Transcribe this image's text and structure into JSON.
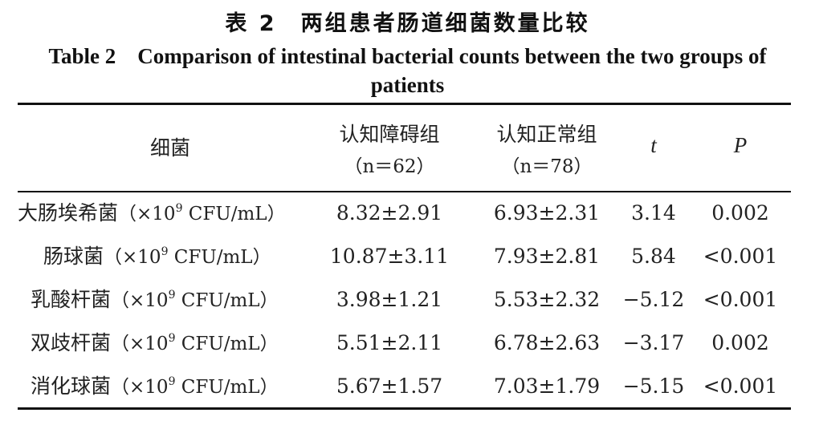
{
  "title": {
    "cn": "表 2　两组患者肠道细菌数量比较",
    "en": "Table 2　Comparison of intestinal bacterial counts between the two groups of patients"
  },
  "table": {
    "headers": {
      "bacteria": "细菌",
      "group1_name": "认知障碍组",
      "group1_n": "（n＝62）",
      "group2_name": "认知正常组",
      "group2_n": "（n＝78）",
      "t": "t",
      "p": "P"
    },
    "unit_prefix": "（×10",
    "unit_exp": "9",
    "unit_suffix": " CFU/mL）",
    "rows": [
      {
        "name": "大肠埃希菌",
        "g1": "8.32±2.91",
        "g2": "6.93±2.31",
        "t": "3.14",
        "p": "0.002"
      },
      {
        "name": "肠球菌",
        "g1": "10.87±3.11",
        "g2": "7.93±2.81",
        "t": "5.84",
        "p": "<0.001"
      },
      {
        "name": "乳酸杆菌",
        "g1": "3.98±1.21",
        "g2": "5.53±2.32",
        "t": "−5.12",
        "p": "<0.001"
      },
      {
        "name": "双歧杆菌",
        "g1": "5.51±2.11",
        "g2": "6.78±2.63",
        "t": "−3.17",
        "p": "0.002"
      },
      {
        "name": "消化球菌",
        "g1": "5.67±1.57",
        "g2": "7.03±1.79",
        "t": "−5.15",
        "p": "<0.001"
      }
    ]
  }
}
